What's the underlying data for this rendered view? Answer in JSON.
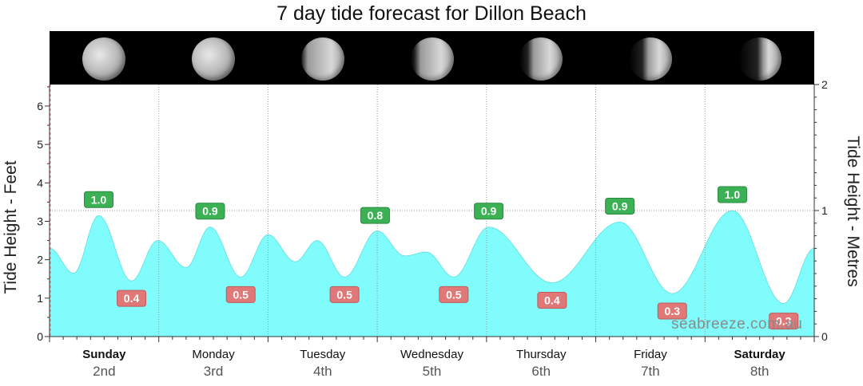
{
  "chart_data": {
    "type": "area",
    "title": "7 day tide forecast for Dillon Beach",
    "ylabel_left": "Tide Height - Feet",
    "ylabel_right": "Tide Height - Metres",
    "ylim_feet": [
      0,
      6.56
    ],
    "ylim_metres": [
      0,
      2
    ],
    "yticks_feet": [
      "0",
      "1",
      "2",
      "3",
      "4",
      "5",
      "6"
    ],
    "yticks_metres": [
      "0",
      "1",
      "2"
    ],
    "days": [
      {
        "name": "Sunday",
        "date": "2nd",
        "bold": true
      },
      {
        "name": "Monday",
        "date": "3rd",
        "bold": false
      },
      {
        "name": "Tuesday",
        "date": "4th",
        "bold": false
      },
      {
        "name": "Wednesday",
        "date": "5th",
        "bold": false
      },
      {
        "name": "Thursday",
        "date": "6th",
        "bold": false
      },
      {
        "name": "Friday",
        "date": "7th",
        "bold": false
      },
      {
        "name": "Saturday",
        "date": "8th",
        "bold": true
      }
    ],
    "curve_unit": "feet, x in days from start",
    "tide_extrema": [
      [
        0.0,
        2.3
      ],
      [
        0.22,
        1.65
      ],
      [
        0.45,
        3.15
      ],
      [
        0.75,
        1.45
      ],
      [
        0.99,
        2.5
      ],
      [
        1.25,
        1.8
      ],
      [
        1.47,
        2.85
      ],
      [
        1.75,
        1.55
      ],
      [
        2.0,
        2.65
      ],
      [
        2.25,
        1.95
      ],
      [
        2.45,
        2.5
      ],
      [
        2.7,
        1.55
      ],
      [
        3.0,
        2.75
      ],
      [
        3.25,
        2.1
      ],
      [
        3.45,
        2.2
      ],
      [
        3.7,
        1.55
      ],
      [
        4.02,
        2.85
      ],
      [
        4.6,
        1.4
      ],
      [
        5.22,
        2.98
      ],
      [
        5.7,
        1.12
      ],
      [
        6.25,
        3.28
      ],
      [
        6.72,
        0.86
      ],
      [
        7.0,
        2.3
      ]
    ],
    "highs": [
      {
        "day": 0.45,
        "label": "1.0"
      },
      {
        "day": 1.47,
        "label": "0.9"
      },
      {
        "day": 2.98,
        "label": "0.8"
      },
      {
        "day": 4.02,
        "label": "0.9"
      },
      {
        "day": 5.22,
        "label": "0.9"
      },
      {
        "day": 6.25,
        "label": "1.0"
      }
    ],
    "lows": [
      {
        "day": 0.75,
        "label": "0.4"
      },
      {
        "day": 1.75,
        "label": "0.5"
      },
      {
        "day": 2.7,
        "label": "0.5"
      },
      {
        "day": 3.7,
        "label": "0.5"
      },
      {
        "day": 4.6,
        "label": "0.4"
      },
      {
        "day": 5.7,
        "label": "0.3"
      },
      {
        "day": 6.72,
        "label": "0.3"
      }
    ],
    "moon_phase_illumination": [
      0.99,
      0.97,
      0.93,
      0.85,
      0.75,
      0.63,
      0.5
    ],
    "colors": {
      "fill": "#80fcfc",
      "high_label": "#3cb054",
      "low_label": "#e07878",
      "grid": "#9a9a9a"
    },
    "grid": true
  },
  "watermark": "seabreeze.com.au"
}
